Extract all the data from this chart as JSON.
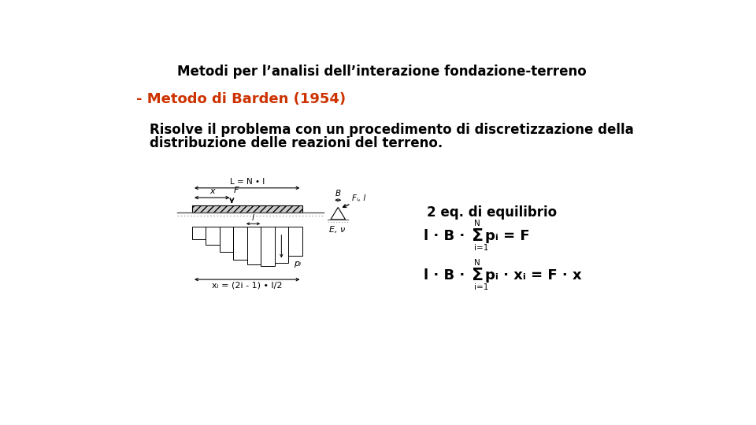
{
  "title": "Metodi per l’analisi dell’interazione fondazione-terreno",
  "subtitle": "- Metodo di Barden (1954)",
  "subtitle_color": "#CC3300",
  "body_text_line1": "Risolve il problema con un procedimento di discretizzazione della",
  "body_text_line2": "distribuzione delle reazioni del terreno.",
  "eq_label": "2 eq. di equilibrio",
  "background": "#ffffff",
  "text_color": "#000000",
  "title_fontsize": 12,
  "subtitle_fontsize": 13,
  "body_fontsize": 12,
  "eq_fontsize": 11
}
